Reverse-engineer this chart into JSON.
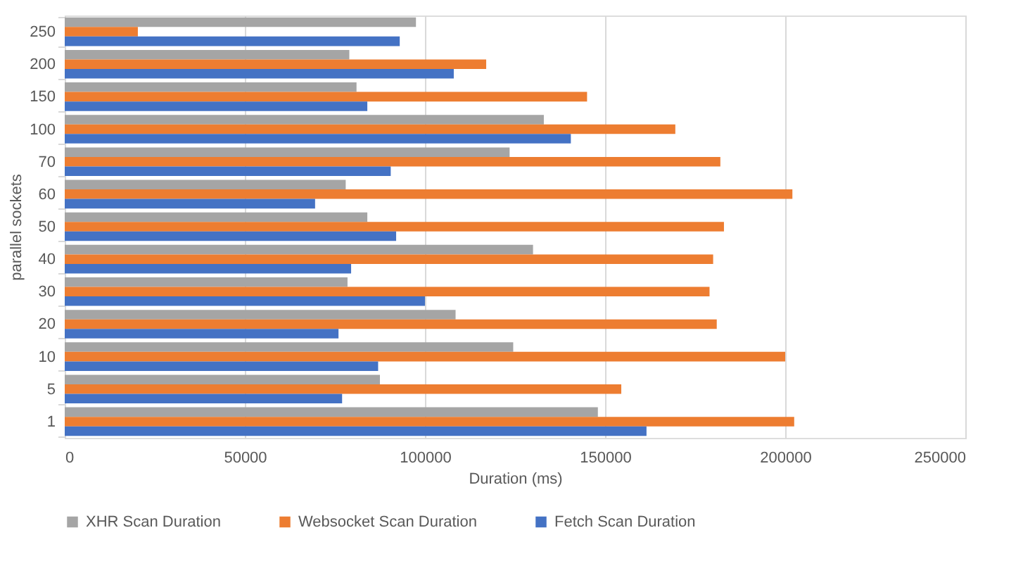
{
  "chart_data": {
    "type": "bar",
    "orientation": "horizontal",
    "xlabel": "Duration (ms)",
    "ylabel": "parallel sockets",
    "categories": [
      "250",
      "200",
      "150",
      "100",
      "70",
      "60",
      "50",
      "40",
      "30",
      "20",
      "10",
      "5",
      "1"
    ],
    "series": [
      {
        "name": "XHR Scan Duration",
        "color": "#a5a5a5",
        "values": [
          97500,
          79000,
          81000,
          133000,
          123500,
          78000,
          84000,
          130000,
          78500,
          108500,
          124500,
          87500,
          148000
        ]
      },
      {
        "name": "Websocket Scan Duration",
        "color": "#ed7d31",
        "values": [
          20300,
          117000,
          145000,
          169500,
          182000,
          202000,
          183000,
          180000,
          179000,
          181000,
          200000,
          154500,
          202500
        ]
      },
      {
        "name": "Fetch Scan Duration",
        "color": "#4472c4",
        "values": [
          93000,
          108000,
          84000,
          140500,
          90500,
          69500,
          92000,
          79500,
          100000,
          76000,
          87000,
          77000,
          161500
        ]
      }
    ],
    "xlim": [
      0,
      250000
    ],
    "xticks": [
      0,
      50000,
      100000,
      150000,
      200000,
      250000
    ],
    "grid": "x",
    "legend": "bottom"
  }
}
